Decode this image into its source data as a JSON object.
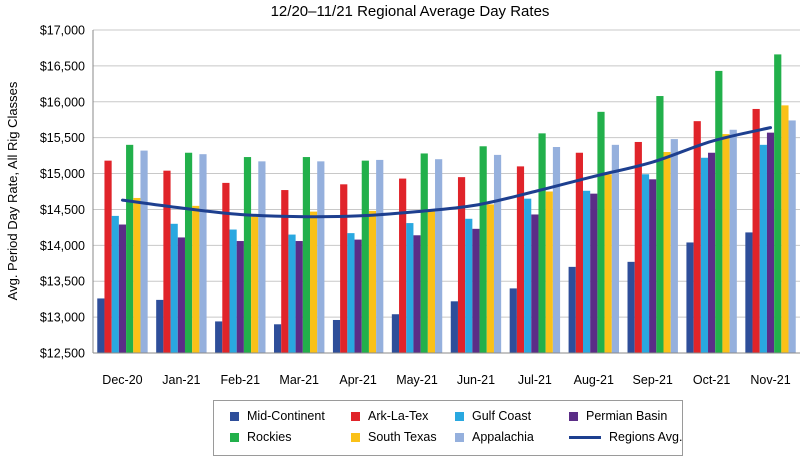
{
  "chart_data": {
    "type": "bar",
    "title": "12/20–11/21 Regional Average Day Rates",
    "ylabel": "Avg. Period Day Rate, All Rig Classes",
    "xlabel": "",
    "ylim": [
      12500,
      17000
    ],
    "yticks": [
      12500,
      13000,
      13500,
      14000,
      14500,
      15000,
      15500,
      16000,
      16500,
      17000
    ],
    "ytick_labels": [
      "$12,500",
      "$13,000",
      "$13,500",
      "$14,000",
      "$14,500",
      "$15,000",
      "$15,500",
      "$16,000",
      "$16,500",
      "$17,000"
    ],
    "grid": true,
    "legend_position": "bottom",
    "categories": [
      "Dec-20",
      "Jan-21",
      "Feb-21",
      "Mar-21",
      "Apr-21",
      "May-21",
      "Jun-21",
      "Jul-21",
      "Aug-21",
      "Sep-21",
      "Oct-21",
      "Nov-21"
    ],
    "series": [
      {
        "name": "Mid-Continent",
        "color": "#2e4e9a",
        "values": [
          13260,
          13240,
          12940,
          12900,
          12960,
          13040,
          13220,
          13400,
          13700,
          13770,
          14040,
          14180
        ]
      },
      {
        "name": "Ark-La-Tex",
        "color": "#e0242a",
        "values": [
          15180,
          15040,
          14870,
          14770,
          14850,
          14930,
          14950,
          15100,
          15290,
          15440,
          15730,
          15900
        ]
      },
      {
        "name": "Gulf Coast",
        "color": "#29a8e0",
        "values": [
          14410,
          14300,
          14220,
          14150,
          14170,
          14310,
          14370,
          14650,
          14760,
          14990,
          15220,
          15400
        ]
      },
      {
        "name": "Permian Basin",
        "color": "#5b2d87",
        "values": [
          14290,
          14110,
          14060,
          14060,
          14080,
          14140,
          14230,
          14430,
          14720,
          14920,
          15290,
          15570
        ]
      },
      {
        "name": "Rockies",
        "color": "#22b04b",
        "values": [
          15400,
          15290,
          15230,
          15230,
          15180,
          15280,
          15380,
          15560,
          15860,
          16080,
          16430,
          16660
        ]
      },
      {
        "name": "South Texas",
        "color": "#fac118",
        "values": [
          14660,
          14550,
          14400,
          14470,
          14480,
          14490,
          14570,
          14750,
          14990,
          15300,
          15550,
          15950
        ]
      },
      {
        "name": "Appalachia",
        "color": "#95b0dd",
        "values": [
          15320,
          15270,
          15170,
          15170,
          15190,
          15200,
          15260,
          15370,
          15400,
          15480,
          15610,
          15740
        ]
      }
    ],
    "line_series": {
      "name": "Regions Avg.",
      "color": "#1d3f8f",
      "values": [
        14630,
        14520,
        14430,
        14400,
        14410,
        14470,
        14560,
        14750,
        14960,
        15160,
        15450,
        15640
      ]
    }
  }
}
